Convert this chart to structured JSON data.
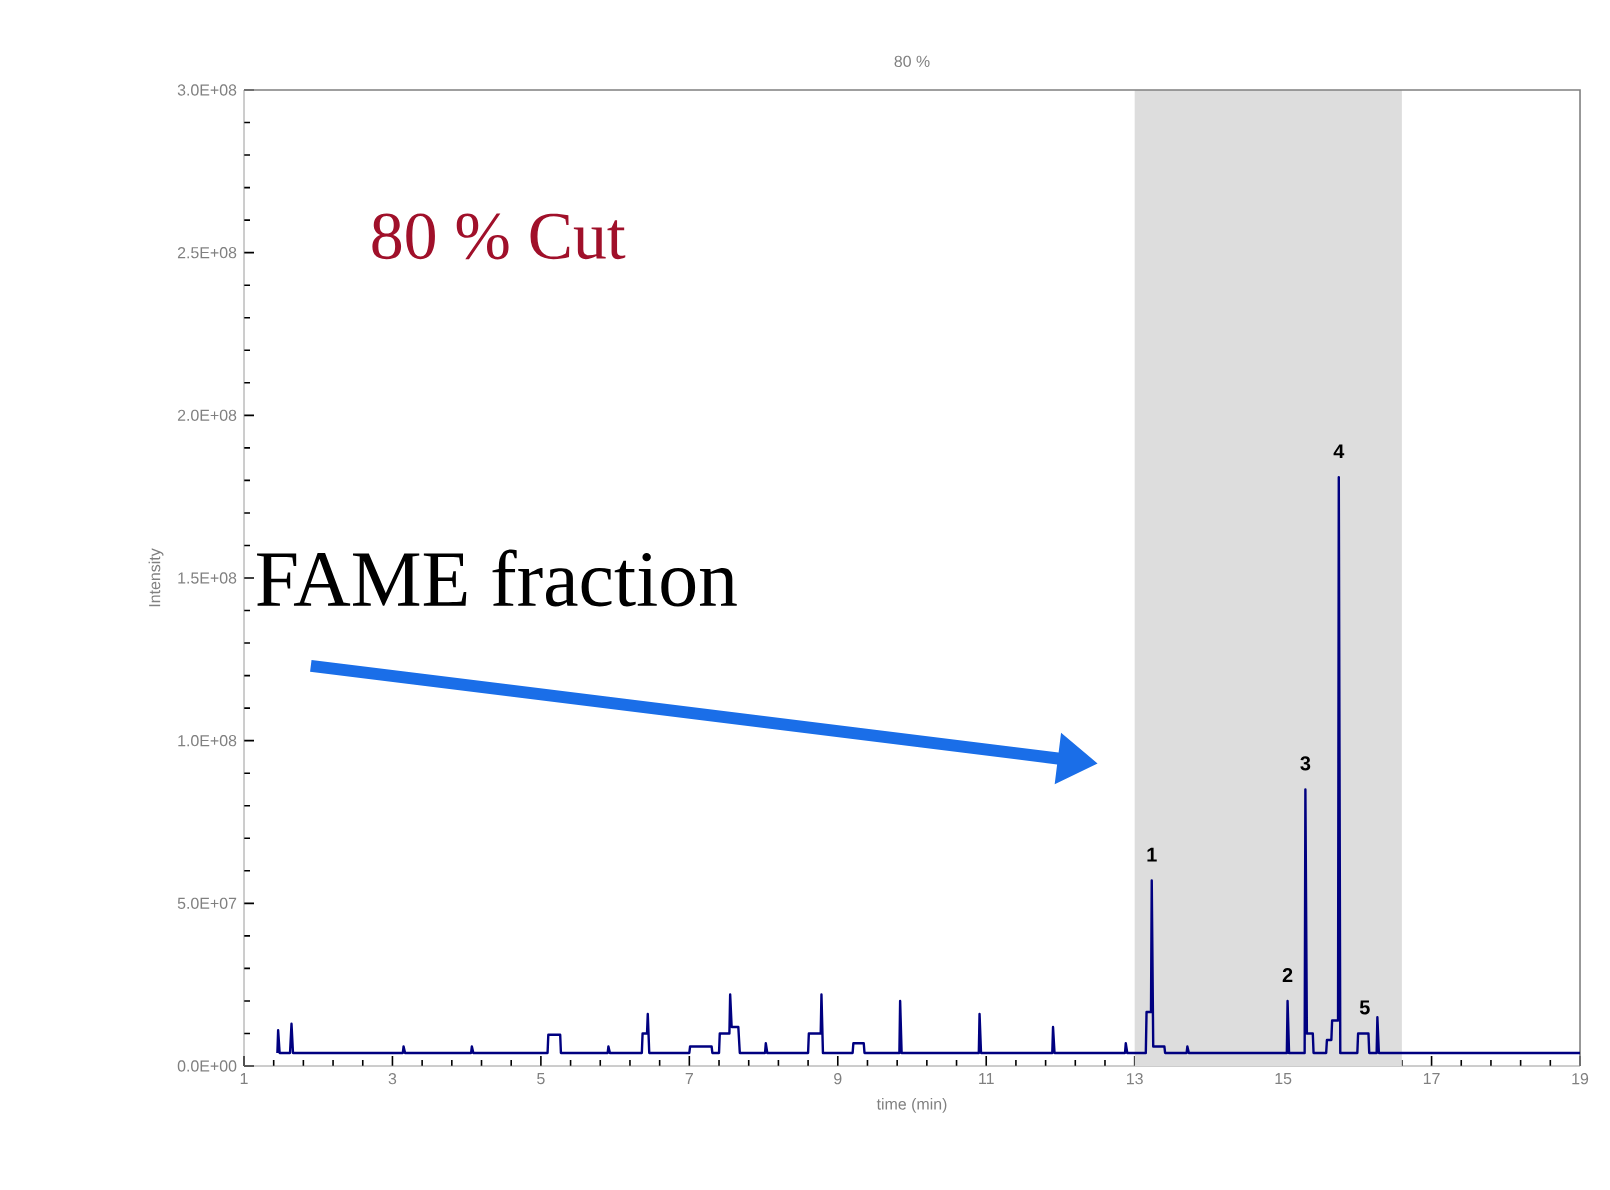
{
  "chart_data": {
    "type": "line",
    "title": "80 %",
    "xlabel": "time (min)",
    "ylabel": "Intensity",
    "color": "#000080",
    "x": [
      1.45,
      1.46,
      1.48,
      1.62,
      1.64,
      1.66,
      3.14,
      3.15,
      3.17,
      4.06,
      4.07,
      4.09,
      5.09,
      5.1,
      5.26,
      5.27,
      5.9,
      5.91,
      5.93,
      6.36,
      6.37,
      6.43,
      6.44,
      6.46,
      7.0,
      7.01,
      7.3,
      7.31,
      7.4,
      7.41,
      7.54,
      7.55,
      7.57,
      7.66,
      7.68,
      8.02,
      8.03,
      8.05,
      8.6,
      8.61,
      8.77,
      8.78,
      8.8,
      9.2,
      9.21,
      9.35,
      9.36,
      9.83,
      9.84,
      9.86,
      10.9,
      10.91,
      10.93,
      11.89,
      11.9,
      11.92,
      12.87,
      12.88,
      12.9,
      13.15,
      13.16,
      13.22,
      13.23,
      13.25,
      13.4,
      13.41,
      13.7,
      13.71,
      13.73,
      15.05,
      15.06,
      15.08,
      15.29,
      15.3,
      15.32,
      15.4,
      15.41,
      15.58,
      15.59,
      15.65,
      15.66,
      15.74,
      15.75,
      15.77,
      16.0,
      16.01,
      16.15,
      16.16,
      16.26,
      16.27,
      16.29,
      19
    ],
    "values": [
      4000000,
      11000000,
      4000000,
      4000000,
      13000000,
      4000000,
      4000000,
      6000000,
      4000000,
      4000000,
      6000000,
      4000000,
      4000000,
      9600000,
      9600000,
      4000000,
      4000000,
      6000000,
      4000000,
      4000000,
      10000000,
      10000000,
      16000000,
      4000000,
      4000000,
      6000000,
      6000000,
      4000000,
      4000000,
      10000000,
      10000000,
      22000000,
      12000000,
      12000000,
      4000000,
      4000000,
      7000000,
      4000000,
      4000000,
      10000000,
      10000000,
      22000000,
      4000000,
      4000000,
      7000000,
      7000000,
      4000000,
      4000000,
      20000000,
      4000000,
      4000000,
      16000000,
      4000000,
      4000000,
      12000000,
      4000000,
      4000000,
      7000000,
      4000000,
      4000000,
      16600000,
      16600000,
      57000000,
      6000000,
      6000000,
      4000000,
      4000000,
      6000000,
      4000000,
      4000000,
      20000000,
      4000000,
      4000000,
      85000000,
      10000000,
      10000000,
      4000000,
      4000000,
      8000000,
      8000000,
      14000000,
      14000000,
      181000000,
      4000000,
      4000000,
      10000000,
      10000000,
      4000000,
      4000000,
      15000000,
      4000000,
      4000000
    ],
    "xlim": [
      1,
      19
    ],
    "xticks": [
      1,
      3,
      5,
      7,
      9,
      11,
      13,
      15,
      17,
      19
    ],
    "ylim": [
      0,
      300000000
    ],
    "yticks": [
      {
        "value": 0,
        "label": "0.0E+00"
      },
      {
        "value": 50000000,
        "label": "5.0E+07"
      },
      {
        "value": 100000000,
        "label": "1.0E+08"
      },
      {
        "value": 150000000,
        "label": "1.5E+08"
      },
      {
        "value": 200000000,
        "label": "2.0E+08"
      },
      {
        "value": 250000000,
        "label": "2.5E+08"
      },
      {
        "value": 300000000,
        "label": "3.0E+08"
      }
    ],
    "bands": [
      {
        "axis": "x",
        "from": 13,
        "to": 16.6,
        "color": "#dddddd"
      }
    ],
    "annotations": [
      "80 % Cut",
      "FAME fraction",
      {
        "text": "1",
        "x": 13.23,
        "y": 57000000
      },
      {
        "text": "2",
        "x": 15.06,
        "y": 20000000
      },
      {
        "text": "3",
        "x": 15.3,
        "y": 85000000
      },
      {
        "text": "4",
        "x": 15.75,
        "y": 181000000
      },
      {
        "text": "5",
        "x": 16.1,
        "y": 10000000
      }
    ]
  }
}
